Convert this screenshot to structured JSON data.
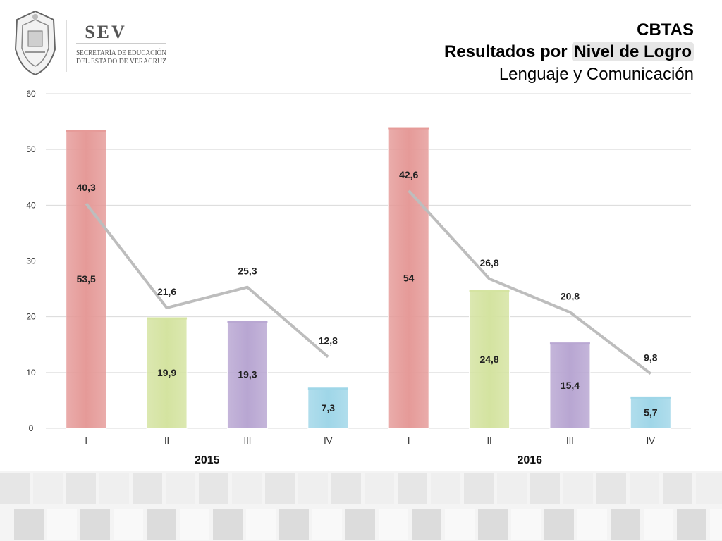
{
  "header": {
    "line1": "CBTAS",
    "line2_prefix": "Resultados por ",
    "line2_highlight": "Nivel de Logro",
    "line3": "Lenguaje y Comunicación"
  },
  "logo": {
    "acronym": "SEV",
    "line1": "SECRETARÍA DE EDUCACIÓN",
    "line2": "DEL ESTADO DE VERACRUZ"
  },
  "colors": {
    "level_I": "#e59a98",
    "level_II": "#d4e3a0",
    "level_III": "#b8a6d2",
    "level_IV": "#9fd6e8",
    "line": "#bdbdbd",
    "grid": "#d9d9d9"
  },
  "chart_data": {
    "type": "bar",
    "ylim": [
      0,
      60
    ],
    "yticks": [
      0,
      10,
      20,
      30,
      40,
      50,
      60
    ],
    "grid": true,
    "legend": "none",
    "groups": [
      {
        "name": "2015",
        "categories": [
          "I",
          "II",
          "III",
          "IV"
        ],
        "bar_values": [
          53.5,
          19.9,
          19.3,
          7.3
        ],
        "bar_labels": [
          "53,5",
          "19,9",
          "19,3",
          "7,3"
        ],
        "line_values": [
          40.3,
          21.6,
          25.3,
          12.8
        ],
        "line_labels": [
          "40,3",
          "21,6",
          "25,3",
          "12,8"
        ]
      },
      {
        "name": "2016",
        "categories": [
          "I",
          "II",
          "III",
          "IV"
        ],
        "bar_values": [
          54,
          24.8,
          15.4,
          5.7
        ],
        "bar_labels": [
          "54",
          "24,8",
          "15,4",
          "5,7"
        ],
        "line_values": [
          42.6,
          26.8,
          20.8,
          9.8
        ],
        "line_labels": [
          "42,6",
          "26,8",
          "20,8",
          "9,8"
        ]
      }
    ]
  }
}
